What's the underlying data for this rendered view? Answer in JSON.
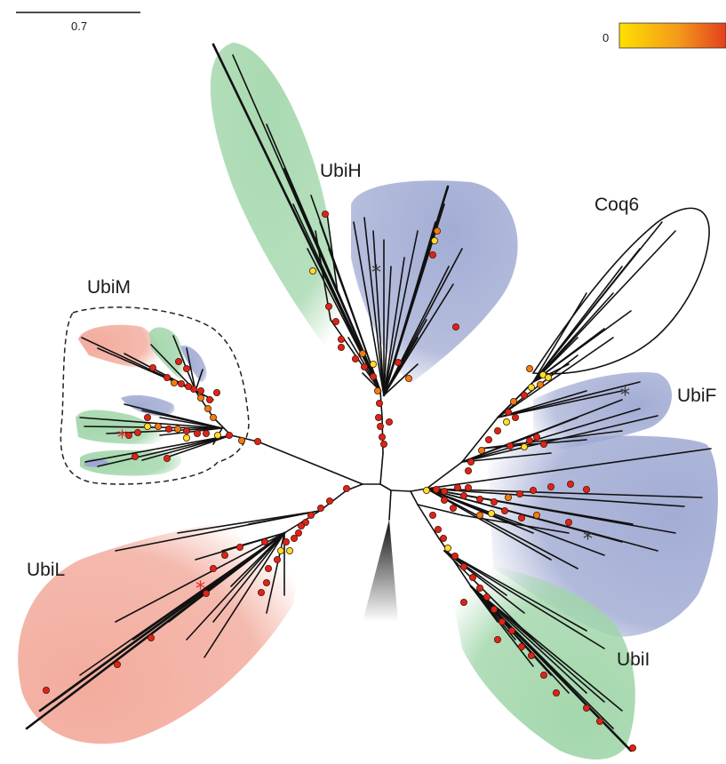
{
  "scale_bar": {
    "label": "0.7"
  },
  "legend": {
    "min_label": "0",
    "gradient_start": "#ffe000",
    "gradient_mid": "#f49a1a",
    "gradient_end": "#e2401c"
  },
  "clades": {
    "ubiH": {
      "label": "UbiH",
      "fill": "#9fd5a8"
    },
    "ubiH_blue": {
      "fill": "#9ea8d2"
    },
    "coq6": {
      "label": "Coq6"
    },
    "ubiM": {
      "label": "UbiM"
    },
    "ubiF": {
      "label": "UbiF",
      "fill": "#9ea8d2"
    },
    "ubiL": {
      "label": "UbiL",
      "fill": "#f2a899"
    },
    "ubiI": {
      "label": "UbiI",
      "fill": "#9fd5a8"
    }
  },
  "marks": {
    "asterisk": "*",
    "asterisk_black": "#333333",
    "asterisk_red": "#e22a2a"
  },
  "node_colors": {
    "red": "#e0221c",
    "orange": "#f07c14",
    "yellow": "#f7e02a"
  },
  "collapsed_clade_colors": {
    "top": "#ffffff",
    "bottom": "#111111"
  }
}
